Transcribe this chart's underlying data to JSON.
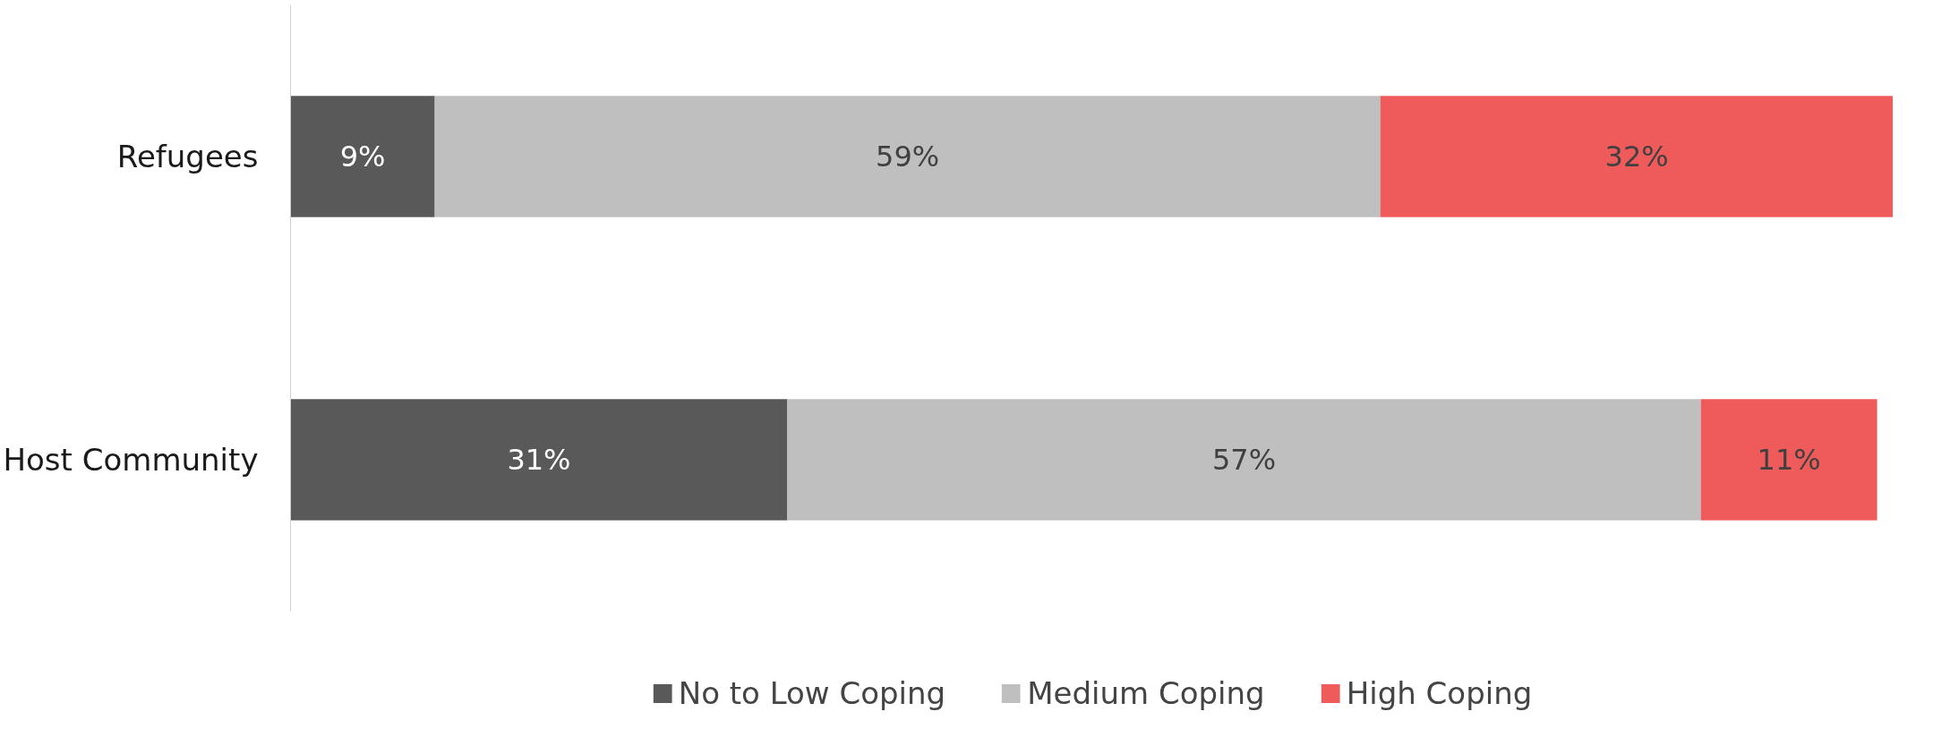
{
  "chart_data": {
    "type": "bar",
    "orientation": "horizontal",
    "stacked": true,
    "categories": [
      "Refugees",
      "Host Community"
    ],
    "series": [
      {
        "name": "No to Low Coping",
        "color": "#595959",
        "values": [
          9,
          31
        ],
        "value_labels": [
          "9%",
          "31%"
        ]
      },
      {
        "name": "Medium Coping",
        "color": "#bfbfbf",
        "values": [
          59,
          57
        ],
        "value_labels": [
          "59%",
          "57%"
        ]
      },
      {
        "name": "High Coping",
        "color": "#ef5b5b",
        "values": [
          32,
          11
        ],
        "value_labels": [
          "32%",
          "11%"
        ]
      }
    ],
    "legend": "bottom",
    "grid": false
  }
}
